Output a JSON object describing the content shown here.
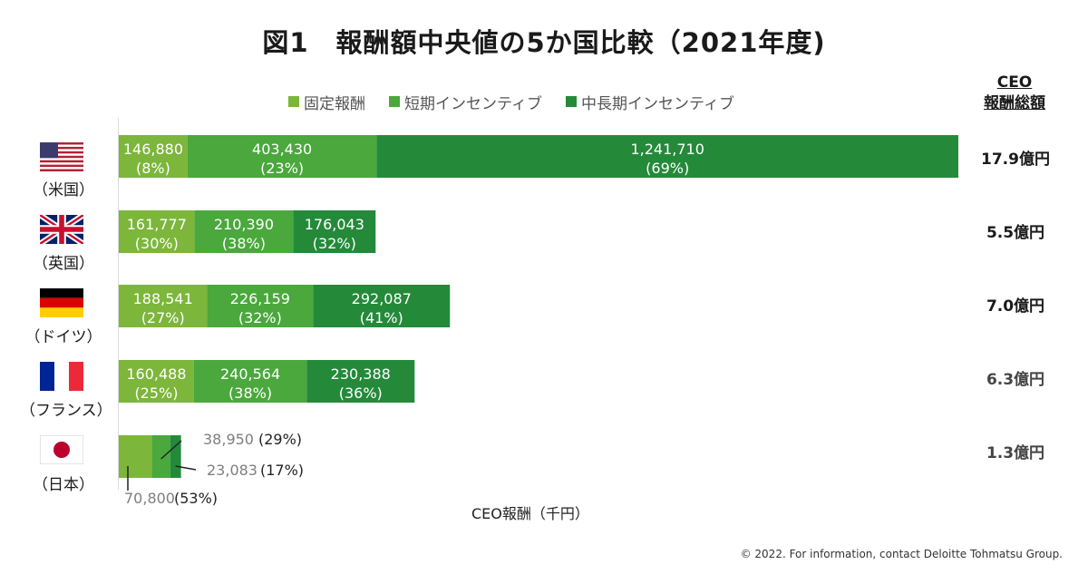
{
  "title": "図1　報酬額中央値の5か国比較（2021年度)",
  "legend": [
    "固定報酬",
    "短期インセンティブ",
    "中長期インセンティブ"
  ],
  "ceo_total_header_line1": "CEO",
  "ceo_total_header_line2": "報酬総額",
  "x_axis_label": "CEO報酬（千円）",
  "copyright": "© 2022. For information, contact Deloitte Tohmatsu Group.",
  "colors": {
    "fixed": "#7cb63b",
    "short": "#4aa83d",
    "long": "#248a3a"
  },
  "countries": [
    {
      "label": "（米国）",
      "flag": "us-flag-icon",
      "total": "17.9億円",
      "values": [
        146880,
        403430,
        1241710
      ],
      "value_labels": [
        "146,880",
        "403,430",
        "1,241,710"
      ],
      "pct_labels": [
        "(8%)",
        "(23%)",
        "(69%)"
      ]
    },
    {
      "label": "（英国）",
      "flag": "uk-flag-icon",
      "total": "5.5億円",
      "values": [
        161777,
        210390,
        176043
      ],
      "value_labels": [
        "161,777",
        "210,390",
        "176,043"
      ],
      "pct_labels": [
        "(30%)",
        "(38%)",
        "(32%)"
      ]
    },
    {
      "label": "（ドイツ）",
      "flag": "germany-flag-icon",
      "total": "7.0億円",
      "values": [
        188541,
        226159,
        292087
      ],
      "value_labels": [
        "188,541",
        "226,159",
        "292,087"
      ],
      "pct_labels": [
        "(27%)",
        "(32%)",
        "(41%)"
      ]
    },
    {
      "label": "（フランス）",
      "flag": "france-flag-icon",
      "total": "6.3億円",
      "values": [
        160488,
        240564,
        230388
      ],
      "value_labels": [
        "160,488",
        "240,564",
        "230,388"
      ],
      "pct_labels": [
        "(25%)",
        "(38%)",
        "(36%)"
      ]
    },
    {
      "label": "（日本）",
      "flag": "japan-flag-icon",
      "total": "1.3億円",
      "values": [
        70800,
        38950,
        23083
      ],
      "value_labels": [
        "70,800",
        "38,950",
        "23,083"
      ],
      "pct_labels": [
        "(53%)",
        "(29%)",
        "(17%)"
      ]
    }
  ],
  "chart_data": {
    "type": "bar",
    "orientation": "horizontal",
    "stacked": true,
    "categories": [
      "米国",
      "英国",
      "ドイツ",
      "フランス",
      "日本"
    ],
    "series": [
      {
        "name": "固定報酬",
        "values": [
          146880,
          161777,
          188541,
          160488,
          70800
        ]
      },
      {
        "name": "短期インセンティブ",
        "values": [
          403430,
          210390,
          226159,
          240564,
          38950
        ]
      },
      {
        "name": "中長期インセンティブ",
        "values": [
          1241710,
          176043,
          292087,
          230388,
          23083
        ]
      }
    ],
    "percentages": [
      [
        8,
        23,
        69
      ],
      [
        30,
        38,
        32
      ],
      [
        27,
        32,
        41
      ],
      [
        25,
        38,
        36
      ],
      [
        53,
        29,
        17
      ]
    ],
    "totals_label": [
      "17.9億円",
      "5.5億円",
      "7.0億円",
      "6.3億円",
      "1.3億円"
    ],
    "xlabel": "CEO報酬（千円）",
    "legend_position": "top"
  }
}
